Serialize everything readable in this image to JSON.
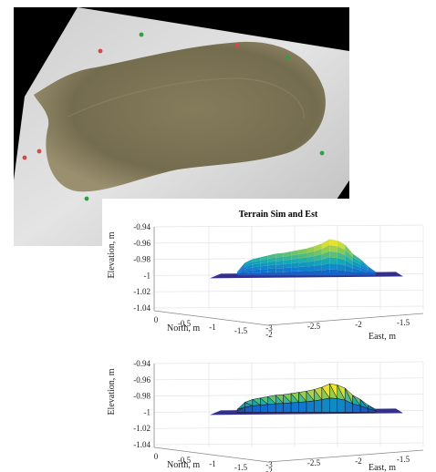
{
  "photo": {
    "subject": "sand pile on textured white sheet",
    "colors": {
      "sand": "#7b7354",
      "sheet": "#dcdcdc",
      "background": "#000000"
    },
    "markers": [
      {
        "color": "#d04a4a"
      },
      {
        "color": "#d04a4a"
      },
      {
        "color": "#d04a4a"
      },
      {
        "color": "#d04a4a"
      },
      {
        "color": "#2ea043"
      },
      {
        "color": "#2ea043"
      },
      {
        "color": "#2ea043"
      },
      {
        "color": "#2ea043"
      }
    ]
  },
  "chart_data": [
    {
      "type": "surface",
      "title": "Terrain Sim and Est",
      "xlabel": "East, m",
      "ylabel": "North, m",
      "zlabel": "Elevation, m",
      "zlim": [
        -1.04,
        -0.94
      ],
      "ztick_labels": [
        "-0.94",
        "-0.96",
        "-0.98",
        "-1",
        "-1.02",
        "-1.04"
      ],
      "ytick_labels": [
        "0",
        "-0.5",
        "-1",
        "-1.5",
        "-2"
      ],
      "xtick_labels": [
        "-3",
        "-2.5",
        "-2",
        "-1.5",
        "-1"
      ],
      "grid": true,
      "peak_elevation": -0.955,
      "base_elevation": -1.0,
      "colormap": "parula"
    },
    {
      "type": "mesh",
      "title": "",
      "xlabel": "East, m",
      "ylabel": "North, m",
      "zlabel": "Elevation, m",
      "zlim": [
        -1.04,
        -0.94
      ],
      "ztick_labels": [
        "-0.94",
        "-0.96",
        "-0.98",
        "-1",
        "-1.02",
        "-1.04"
      ],
      "ytick_labels": [
        "0",
        "-0.5",
        "-1",
        "-1.5",
        "-2"
      ],
      "xtick_labels": [
        "-3",
        "-2.5",
        "-2",
        "-1.5",
        "-1"
      ],
      "grid": true,
      "peak_elevation": -0.965,
      "base_elevation": -1.0,
      "colormap": "parula"
    }
  ]
}
